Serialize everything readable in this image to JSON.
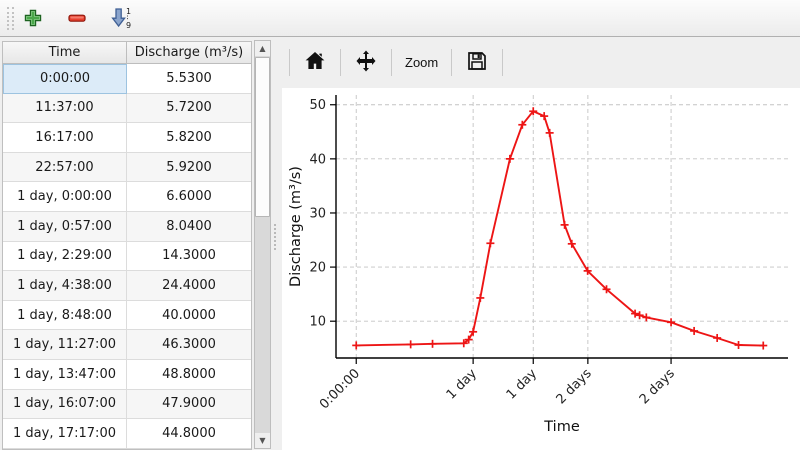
{
  "top_toolbar": {
    "buttons": [
      {
        "icon": "add-icon"
      },
      {
        "icon": "remove-icon"
      },
      {
        "icon": "sort-ascending-icon",
        "digits_top": "1",
        "digits_bottom": "9"
      }
    ]
  },
  "table": {
    "columns": [
      "Time",
      "Discharge (m³/s)"
    ],
    "rows": [
      [
        "0:00:00",
        "5.5300"
      ],
      [
        "11:37:00",
        "5.7200"
      ],
      [
        "16:17:00",
        "5.8200"
      ],
      [
        "22:57:00",
        "5.9200"
      ],
      [
        "1 day, 0:00:00",
        "6.6000"
      ],
      [
        "1 day, 0:57:00",
        "8.0400"
      ],
      [
        "1 day, 2:29:00",
        "14.3000"
      ],
      [
        "1 day, 4:38:00",
        "24.4000"
      ],
      [
        "1 day, 8:48:00",
        "40.0000"
      ],
      [
        "1 day, 11:27:00",
        "46.3000"
      ],
      [
        "1 day, 13:47:00",
        "48.8000"
      ],
      [
        "1 day, 16:07:00",
        "47.9000"
      ],
      [
        "1 day, 17:17:00",
        "44.8000"
      ]
    ],
    "selected": {
      "row": 0,
      "col": 0
    }
  },
  "chart_toolbar": {
    "buttons": [
      {
        "icon": "home-icon"
      },
      {
        "icon": "pan-icon"
      },
      {
        "label": "Zoom"
      },
      {
        "icon": "save-icon"
      }
    ]
  },
  "chart_data": {
    "type": "line",
    "xlabel": "Time",
    "ylabel": "Discharge (m³/s)",
    "line_color": "#ed1515",
    "marker": "plus",
    "grid": "dashed",
    "xlim_days": [
      -0.18,
      3.84
    ],
    "ylim": [
      3.2,
      51.8
    ],
    "yticks": [
      10,
      20,
      30,
      40,
      50
    ],
    "xtick_pos_days": [
      0,
      1.0396,
      1.5743,
      2.06,
      2.8
    ],
    "xtick_labels": [
      "0:00:00",
      "1 day",
      "1 day",
      "2 days",
      "2 days"
    ],
    "x_days": [
      0,
      0.484,
      0.6785,
      0.9563,
      1.0,
      1.0396,
      1.1035,
      1.1931,
      1.3667,
      1.4771,
      1.5743,
      1.6715,
      1.7201,
      1.853,
      1.917,
      2.058,
      2.226,
      2.48,
      2.52,
      2.58,
      2.8,
      3.005,
      3.21,
      3.4,
      3.62
    ],
    "y": [
      5.53,
      5.72,
      5.82,
      5.92,
      6.6,
      8.04,
      14.3,
      24.4,
      40.0,
      46.3,
      48.8,
      47.9,
      44.8,
      27.8,
      24.3,
      19.3,
      15.9,
      11.4,
      11.1,
      10.7,
      9.8,
      8.2,
      6.9,
      5.6,
      5.5
    ]
  }
}
